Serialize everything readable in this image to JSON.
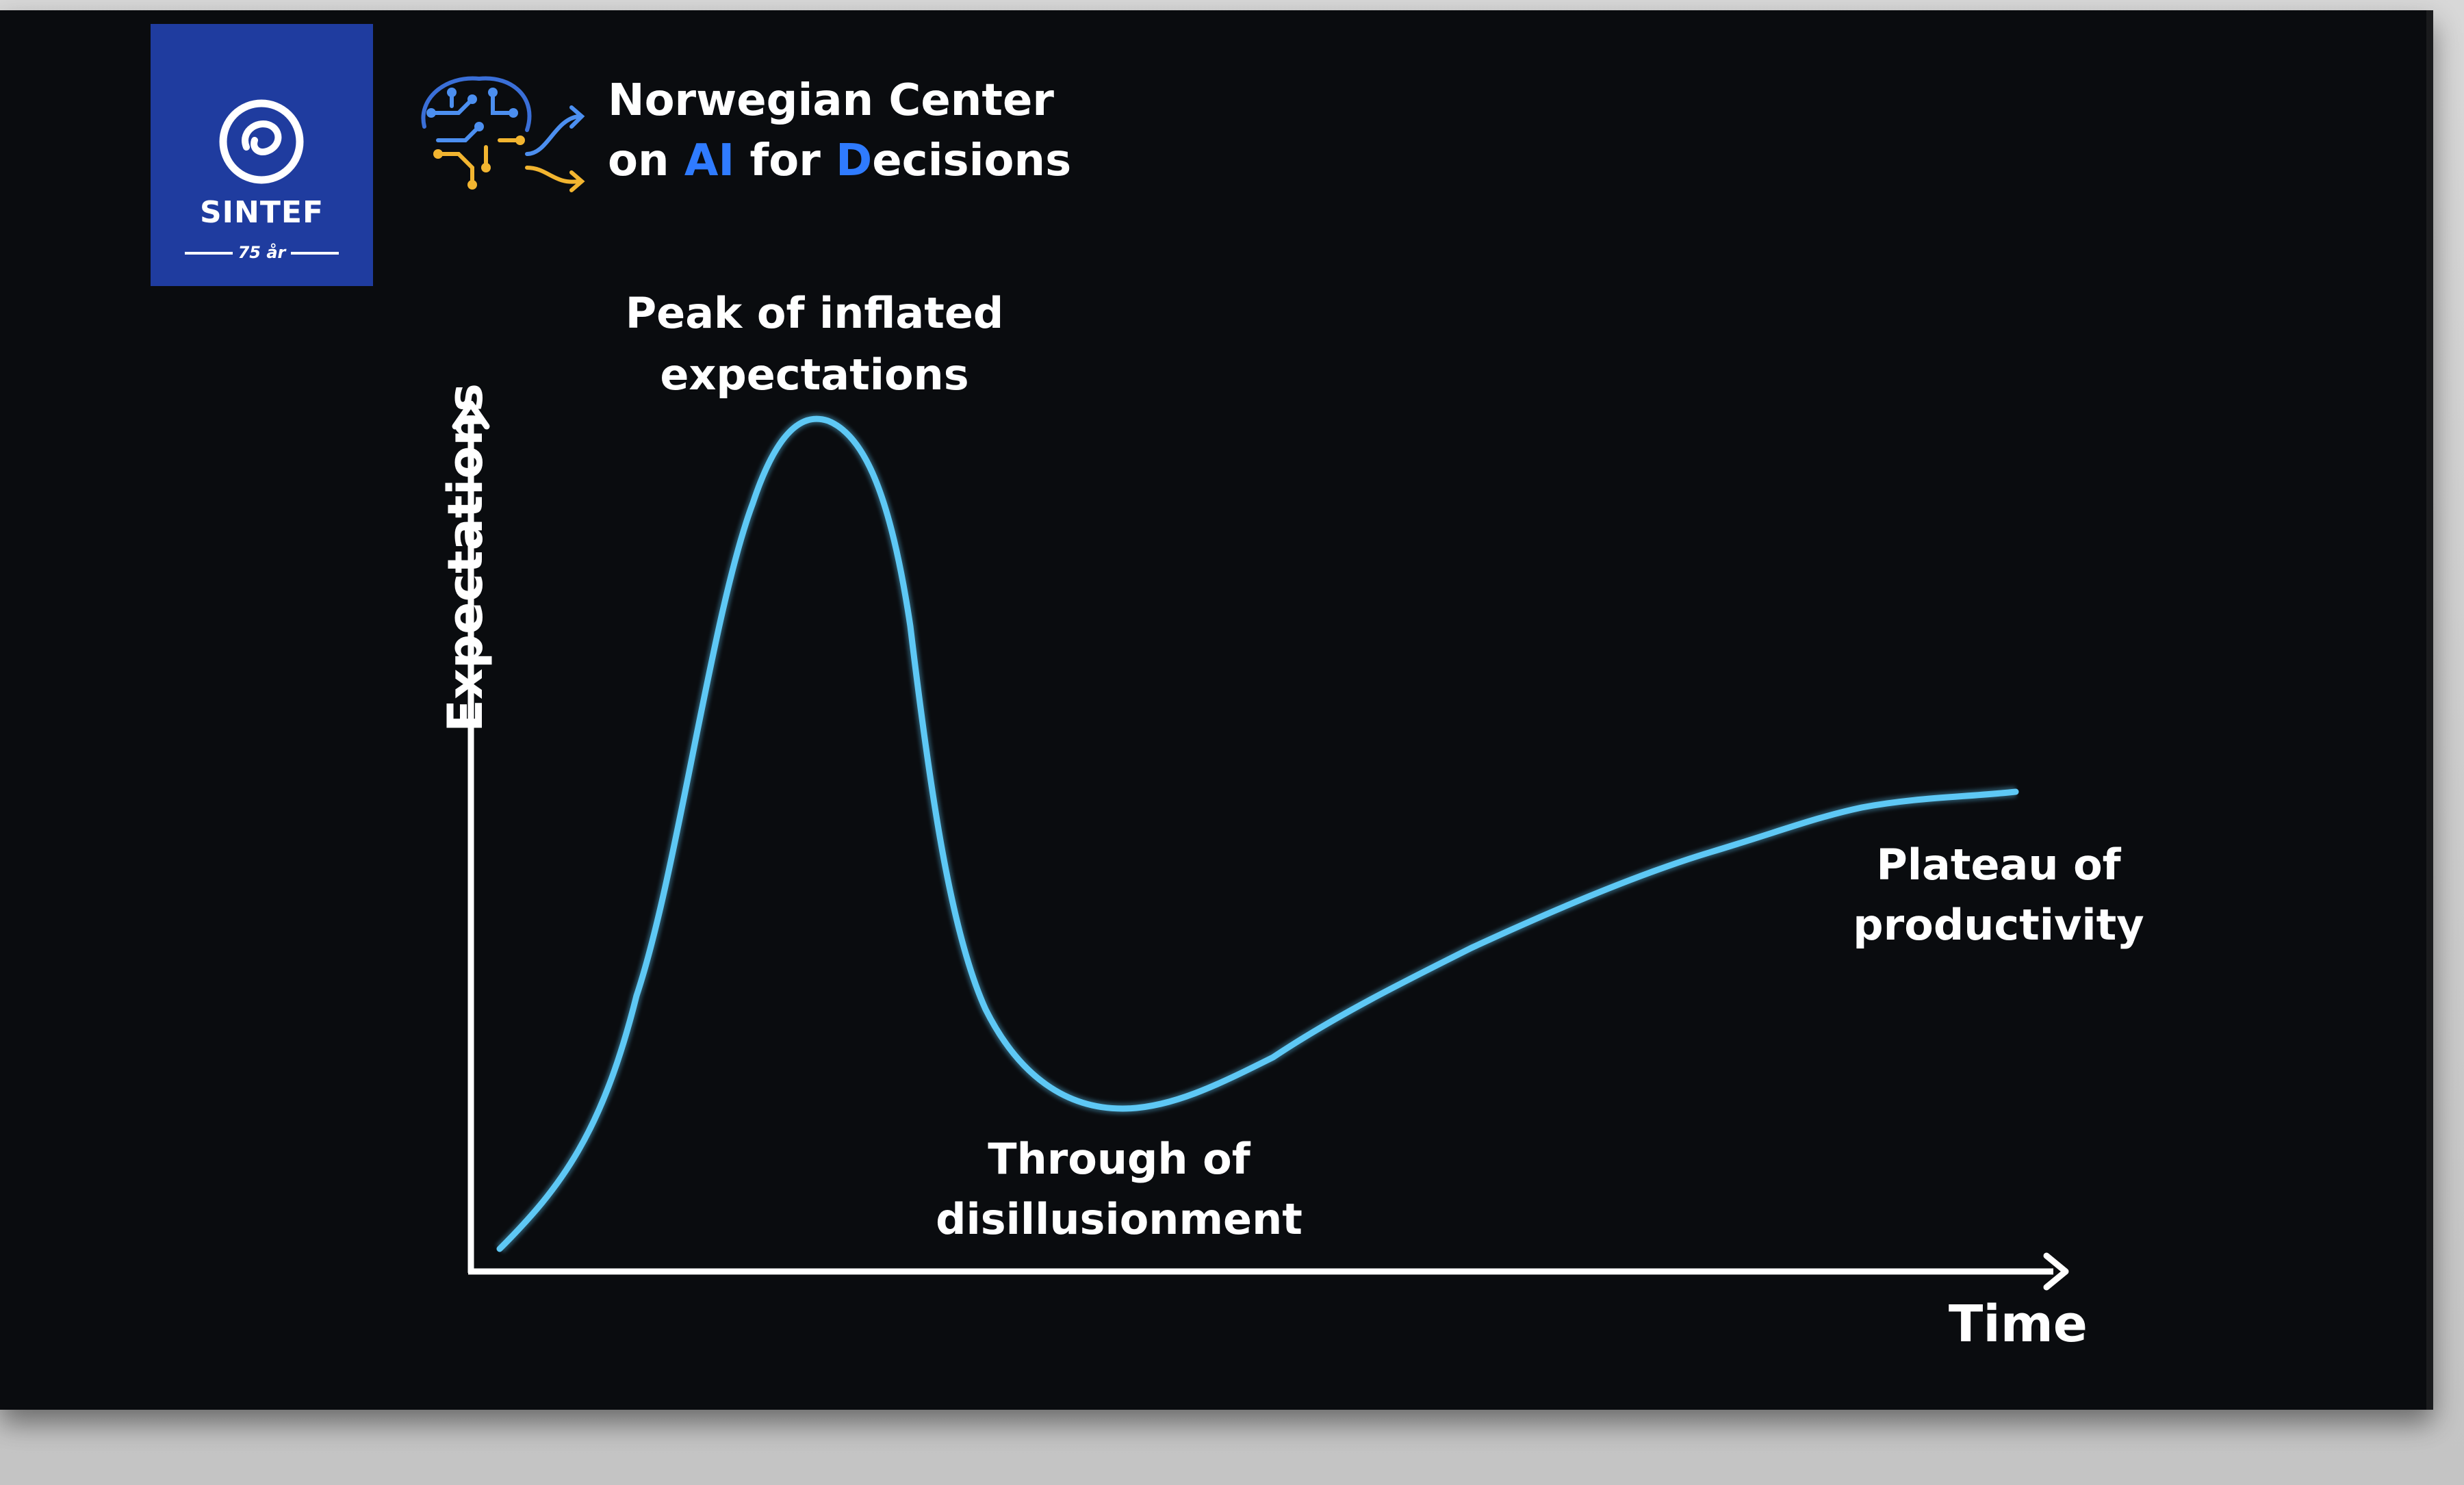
{
  "organization": {
    "name": "SINTEF",
    "tagline": "75 år",
    "brand_color": "#1f3c9f"
  },
  "center": {
    "line1": "Norwegian Center",
    "line2_on": "on ",
    "line2_ai": "AI",
    "line2_for": " for ",
    "line2_d": "D",
    "line2_rest": "ecisions",
    "highlight_color": "#2f7bff",
    "icon": "brain-circuit-icon"
  },
  "diagram": {
    "y_axis_label": "Expectations",
    "x_axis_label": "Time",
    "curve_color": "#5ec8f5",
    "phases": {
      "peak": {
        "line1": "Peak of inflated",
        "line2": "expectations"
      },
      "trough": {
        "line1": "Through of",
        "line2": "disillusionment"
      },
      "plateau": {
        "line1": "Plateau of",
        "line2": "productivity"
      }
    }
  }
}
